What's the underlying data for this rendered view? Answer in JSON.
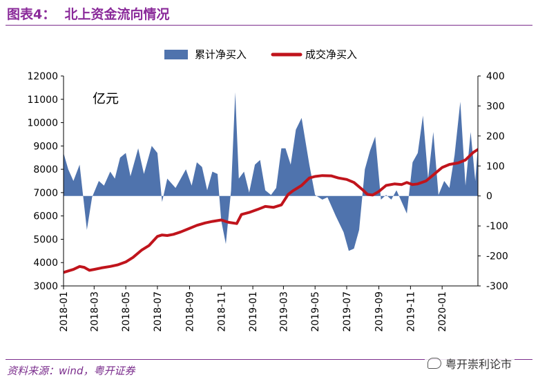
{
  "header": {
    "title": "图表4：  北上资金流向情况"
  },
  "footer": {
    "source": "资料来源：wind，粤开证券",
    "watermark": "粤开崇利论市",
    "watermark_icon": "wechat-icon"
  },
  "chart_data": {
    "type": "area+line",
    "unit_label": "亿元",
    "legend": [
      "累计净买入",
      "成交净买入"
    ],
    "colors": {
      "area": "#4f73ad",
      "line": "#c0141c"
    },
    "legend_position": "top",
    "grid": false,
    "y_left": {
      "min": 3000,
      "max": 12000,
      "ticks": [
        "12000",
        "11000",
        "10000",
        "9000",
        "8000",
        "7000",
        "6000",
        "5000",
        "4000",
        "3000"
      ]
    },
    "y_right": {
      "min": -300,
      "max": 400,
      "ticks": [
        "400",
        "300",
        "200",
        "100",
        "0",
        "-100",
        "-200",
        "-300"
      ]
    },
    "x_ticks": [
      "2018-01",
      "2018-03",
      "2018-05",
      "2018-07",
      "2018-09",
      "2018-11",
      "2019-01",
      "2019-03",
      "2019-05",
      "2019-07",
      "2019-09",
      "2019-11",
      "2020-01"
    ],
    "x_range": [
      "2018-01-01",
      "2020-03-10"
    ],
    "series": [
      {
        "name": "累计净买入",
        "axis": "left",
        "points": [
          [
            "2018-01-01",
            8700
          ],
          [
            "2018-01-10",
            8000
          ],
          [
            "2018-01-20",
            7500
          ],
          [
            "2018-02-01",
            8200
          ],
          [
            "2018-02-15",
            5400
          ],
          [
            "2018-02-25",
            6800
          ],
          [
            "2018-03-10",
            7500
          ],
          [
            "2018-03-20",
            7300
          ],
          [
            "2018-04-01",
            7900
          ],
          [
            "2018-04-10",
            7600
          ],
          [
            "2018-04-20",
            8500
          ],
          [
            "2018-05-01",
            8700
          ],
          [
            "2018-05-10",
            7700
          ],
          [
            "2018-05-25",
            8900
          ],
          [
            "2018-06-05",
            7800
          ],
          [
            "2018-06-20",
            9000
          ],
          [
            "2018-07-01",
            8700
          ],
          [
            "2018-07-10",
            6600
          ],
          [
            "2018-07-20",
            7600
          ],
          [
            "2018-08-05",
            7200
          ],
          [
            "2018-08-15",
            7600
          ],
          [
            "2018-08-25",
            8000
          ],
          [
            "2018-09-05",
            7300
          ],
          [
            "2018-09-15",
            8300
          ],
          [
            "2018-09-25",
            8100
          ],
          [
            "2018-10-05",
            7100
          ],
          [
            "2018-10-15",
            7900
          ],
          [
            "2018-10-25",
            7800
          ],
          [
            "2018-11-01",
            5800
          ],
          [
            "2018-11-10",
            4800
          ],
          [
            "2018-11-20",
            7100
          ],
          [
            "2018-11-28",
            11300
          ],
          [
            "2018-12-05",
            7600
          ],
          [
            "2018-12-15",
            7900
          ],
          [
            "2018-12-25",
            7000
          ],
          [
            "2019-01-05",
            8200
          ],
          [
            "2019-01-15",
            8400
          ],
          [
            "2019-01-25",
            7100
          ],
          [
            "2019-02-05",
            6900
          ],
          [
            "2019-02-15",
            7200
          ],
          [
            "2019-02-25",
            8900
          ],
          [
            "2019-03-05",
            8900
          ],
          [
            "2019-03-15",
            8200
          ],
          [
            "2019-03-25",
            9700
          ],
          [
            "2019-04-05",
            10200
          ],
          [
            "2019-04-20",
            8200
          ],
          [
            "2019-05-01",
            6900
          ],
          [
            "2019-05-15",
            6700
          ],
          [
            "2019-05-25",
            6800
          ],
          [
            "2019-06-10",
            6000
          ],
          [
            "2019-06-25",
            5300
          ],
          [
            "2019-07-05",
            4500
          ],
          [
            "2019-07-15",
            4600
          ],
          [
            "2019-07-25",
            5400
          ],
          [
            "2019-08-05",
            8000
          ],
          [
            "2019-08-15",
            8800
          ],
          [
            "2019-08-25",
            9400
          ],
          [
            "2019-09-05",
            6700
          ],
          [
            "2019-09-15",
            6900
          ],
          [
            "2019-09-25",
            6700
          ],
          [
            "2019-10-05",
            7100
          ],
          [
            "2019-10-15",
            6600
          ],
          [
            "2019-10-25",
            6100
          ],
          [
            "2019-11-05",
            8300
          ],
          [
            "2019-11-15",
            8700
          ],
          [
            "2019-11-25",
            10300
          ],
          [
            "2019-12-05",
            7600
          ],
          [
            "2019-12-15",
            9600
          ],
          [
            "2019-12-25",
            6900
          ],
          [
            "2020-01-05",
            7500
          ],
          [
            "2020-01-15",
            7200
          ],
          [
            "2020-01-25",
            8600
          ],
          [
            "2020-02-05",
            10900
          ],
          [
            "2020-02-15",
            7300
          ],
          [
            "2020-02-25",
            9600
          ],
          [
            "2020-03-05",
            7500
          ],
          [
            "2020-03-10",
            9000
          ]
        ]
      },
      {
        "name": "成交净买入",
        "axis": "right",
        "points": [
          [
            "2018-01-01",
            -255
          ],
          [
            "2018-01-10",
            -250
          ],
          [
            "2018-01-20",
            -245
          ],
          [
            "2018-02-01",
            -235
          ],
          [
            "2018-02-10",
            -238
          ],
          [
            "2018-02-20",
            -248
          ],
          [
            "2018-03-01",
            -245
          ],
          [
            "2018-03-15",
            -240
          ],
          [
            "2018-04-01",
            -235
          ],
          [
            "2018-04-15",
            -230
          ],
          [
            "2018-05-01",
            -220
          ],
          [
            "2018-05-15",
            -205
          ],
          [
            "2018-06-01",
            -180
          ],
          [
            "2018-06-15",
            -165
          ],
          [
            "2018-07-01",
            -135
          ],
          [
            "2018-07-10",
            -130
          ],
          [
            "2018-07-20",
            -132
          ],
          [
            "2018-08-01",
            -128
          ],
          [
            "2018-08-15",
            -120
          ],
          [
            "2018-09-01",
            -108
          ],
          [
            "2018-09-15",
            -98
          ],
          [
            "2018-10-01",
            -90
          ],
          [
            "2018-10-15",
            -85
          ],
          [
            "2018-11-01",
            -80
          ],
          [
            "2018-11-15",
            -88
          ],
          [
            "2018-12-01",
            -92
          ],
          [
            "2018-12-10",
            -62
          ],
          [
            "2018-12-25",
            -55
          ],
          [
            "2019-01-10",
            -45
          ],
          [
            "2019-01-25",
            -35
          ],
          [
            "2019-02-10",
            -38
          ],
          [
            "2019-02-25",
            -30
          ],
          [
            "2019-03-10",
            5
          ],
          [
            "2019-03-20",
            18
          ],
          [
            "2019-04-05",
            35
          ],
          [
            "2019-04-20",
            60
          ],
          [
            "2019-05-01",
            65
          ],
          [
            "2019-05-15",
            68
          ],
          [
            "2019-06-01",
            67
          ],
          [
            "2019-06-15",
            60
          ],
          [
            "2019-07-01",
            55
          ],
          [
            "2019-07-15",
            45
          ],
          [
            "2019-08-01",
            20
          ],
          [
            "2019-08-10",
            5
          ],
          [
            "2019-08-20",
            3
          ],
          [
            "2019-09-01",
            15
          ],
          [
            "2019-09-15",
            35
          ],
          [
            "2019-10-01",
            40
          ],
          [
            "2019-10-15",
            38
          ],
          [
            "2019-10-25",
            45
          ],
          [
            "2019-11-05",
            38
          ],
          [
            "2019-11-15",
            40
          ],
          [
            "2019-12-01",
            50
          ],
          [
            "2019-12-15",
            70
          ],
          [
            "2020-01-01",
            95
          ],
          [
            "2020-01-15",
            105
          ],
          [
            "2020-02-01",
            110
          ],
          [
            "2020-02-15",
            120
          ],
          [
            "2020-03-01",
            145
          ],
          [
            "2020-03-10",
            155
          ]
        ]
      }
    ]
  }
}
